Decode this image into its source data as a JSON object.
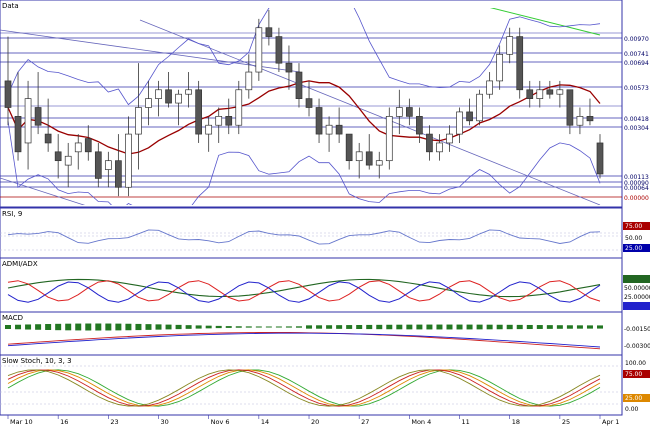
{
  "chart_data": {
    "type": "candlestick",
    "panes": {
      "price": {
        "title": "Data",
        "ylim": [
          0.0081,
          0.0103
        ],
        "ticks": [
          "0.00970",
          "0.00741",
          "0.00694",
          "0.00573",
          "0.00418",
          "0.00304",
          "0.00113",
          "0.00090",
          "0.00064",
          "0.00000"
        ],
        "candles": [
          {
            "o": 0.0095,
            "h": 0.01,
            "l": 0.009,
            "c": 0.0092,
            "bull": false
          },
          {
            "o": 0.0091,
            "h": 0.0096,
            "l": 0.0086,
            "c": 0.0087,
            "bull": false
          },
          {
            "o": 0.0088,
            "h": 0.0095,
            "l": 0.0085,
            "c": 0.0093,
            "bull": true
          },
          {
            "o": 0.0092,
            "h": 0.0096,
            "l": 0.0089,
            "c": 0.009,
            "bull": false
          },
          {
            "o": 0.0089,
            "h": 0.0093,
            "l": 0.0087,
            "c": 0.0088,
            "bull": false
          },
          {
            "o": 0.0087,
            "h": 0.0089,
            "l": 0.0084,
            "c": 0.0086,
            "bull": false
          },
          {
            "o": 0.00855,
            "h": 0.0088,
            "l": 0.0083,
            "c": 0.00865,
            "bull": true
          },
          {
            "o": 0.0087,
            "h": 0.0089,
            "l": 0.0085,
            "c": 0.0088,
            "bull": true
          },
          {
            "o": 0.00885,
            "h": 0.009,
            "l": 0.0086,
            "c": 0.0087,
            "bull": false
          },
          {
            "o": 0.0087,
            "h": 0.0088,
            "l": 0.0083,
            "c": 0.0084,
            "bull": false
          },
          {
            "o": 0.0085,
            "h": 0.0087,
            "l": 0.0083,
            "c": 0.0086,
            "bull": true
          },
          {
            "o": 0.0086,
            "h": 0.0089,
            "l": 0.0082,
            "c": 0.0083,
            "bull": false
          },
          {
            "o": 0.0083,
            "h": 0.0091,
            "l": 0.0082,
            "c": 0.0089,
            "bull": true
          },
          {
            "o": 0.0089,
            "h": 0.0097,
            "l": 0.0085,
            "c": 0.0092,
            "bull": true
          },
          {
            "o": 0.0092,
            "h": 0.0095,
            "l": 0.009,
            "c": 0.0093,
            "bull": true
          },
          {
            "o": 0.0093,
            "h": 0.0095,
            "l": 0.0091,
            "c": 0.0094,
            "bull": true
          },
          {
            "o": 0.0094,
            "h": 0.0096,
            "l": 0.0092,
            "c": 0.00925,
            "bull": false
          },
          {
            "o": 0.00925,
            "h": 0.0094,
            "l": 0.009,
            "c": 0.00935,
            "bull": true
          },
          {
            "o": 0.00935,
            "h": 0.0096,
            "l": 0.0092,
            "c": 0.0094,
            "bull": true
          },
          {
            "o": 0.0094,
            "h": 0.0095,
            "l": 0.0088,
            "c": 0.0089,
            "bull": false
          },
          {
            "o": 0.0089,
            "h": 0.0091,
            "l": 0.0087,
            "c": 0.009,
            "bull": true
          },
          {
            "o": 0.009,
            "h": 0.0092,
            "l": 0.0088,
            "c": 0.0091,
            "bull": true
          },
          {
            "o": 0.0091,
            "h": 0.0093,
            "l": 0.0089,
            "c": 0.009,
            "bull": false
          },
          {
            "o": 0.009,
            "h": 0.0095,
            "l": 0.0089,
            "c": 0.0094,
            "bull": true
          },
          {
            "o": 0.0094,
            "h": 0.0098,
            "l": 0.0093,
            "c": 0.0096,
            "bull": true
          },
          {
            "o": 0.0096,
            "h": 0.0102,
            "l": 0.0095,
            "c": 0.0101,
            "bull": true
          },
          {
            "o": 0.0101,
            "h": 0.0103,
            "l": 0.0099,
            "c": 0.01,
            "bull": false
          },
          {
            "o": 0.01,
            "h": 0.0101,
            "l": 0.0096,
            "c": 0.0097,
            "bull": false
          },
          {
            "o": 0.0097,
            "h": 0.0099,
            "l": 0.0094,
            "c": 0.0096,
            "bull": false
          },
          {
            "o": 0.0096,
            "h": 0.0097,
            "l": 0.0092,
            "c": 0.0093,
            "bull": false
          },
          {
            "o": 0.0093,
            "h": 0.0095,
            "l": 0.0091,
            "c": 0.0092,
            "bull": false
          },
          {
            "o": 0.0092,
            "h": 0.0093,
            "l": 0.0088,
            "c": 0.0089,
            "bull": false
          },
          {
            "o": 0.0089,
            "h": 0.0091,
            "l": 0.0087,
            "c": 0.009,
            "bull": true
          },
          {
            "o": 0.009,
            "h": 0.0092,
            "l": 0.0088,
            "c": 0.0089,
            "bull": false
          },
          {
            "o": 0.0089,
            "h": 0.0089,
            "l": 0.0085,
            "c": 0.0086,
            "bull": false
          },
          {
            "o": 0.0086,
            "h": 0.0088,
            "l": 0.0084,
            "c": 0.0087,
            "bull": true
          },
          {
            "o": 0.0087,
            "h": 0.0089,
            "l": 0.0085,
            "c": 0.00855,
            "bull": false
          },
          {
            "o": 0.00855,
            "h": 0.0087,
            "l": 0.0084,
            "c": 0.0086,
            "bull": true
          },
          {
            "o": 0.0086,
            "h": 0.0092,
            "l": 0.0085,
            "c": 0.0091,
            "bull": true
          },
          {
            "o": 0.0091,
            "h": 0.0094,
            "l": 0.0089,
            "c": 0.0092,
            "bull": true
          },
          {
            "o": 0.0092,
            "h": 0.0093,
            "l": 0.009,
            "c": 0.0091,
            "bull": false
          },
          {
            "o": 0.0091,
            "h": 0.0092,
            "l": 0.0088,
            "c": 0.0089,
            "bull": false
          },
          {
            "o": 0.0089,
            "h": 0.009,
            "l": 0.0086,
            "c": 0.0087,
            "bull": false
          },
          {
            "o": 0.0087,
            "h": 0.0089,
            "l": 0.0086,
            "c": 0.0088,
            "bull": true
          },
          {
            "o": 0.0088,
            "h": 0.009,
            "l": 0.0087,
            "c": 0.0089,
            "bull": true
          },
          {
            "o": 0.0089,
            "h": 0.0092,
            "l": 0.0088,
            "c": 0.00915,
            "bull": true
          },
          {
            "o": 0.00915,
            "h": 0.0093,
            "l": 0.009,
            "c": 0.00905,
            "bull": false
          },
          {
            "o": 0.00905,
            "h": 0.0094,
            "l": 0.009,
            "c": 0.00935,
            "bull": true
          },
          {
            "o": 0.00935,
            "h": 0.0096,
            "l": 0.0093,
            "c": 0.0095,
            "bull": true
          },
          {
            "o": 0.0095,
            "h": 0.0099,
            "l": 0.0094,
            "c": 0.0098,
            "bull": true
          },
          {
            "o": 0.0098,
            "h": 0.0101,
            "l": 0.0097,
            "c": 0.01,
            "bull": true
          },
          {
            "o": 0.01,
            "h": 0.0101,
            "l": 0.0093,
            "c": 0.0094,
            "bull": false
          },
          {
            "o": 0.0094,
            "h": 0.0095,
            "l": 0.0092,
            "c": 0.0093,
            "bull": false
          },
          {
            "o": 0.0093,
            "h": 0.0095,
            "l": 0.0092,
            "c": 0.0094,
            "bull": true
          },
          {
            "o": 0.0094,
            "h": 0.0095,
            "l": 0.0093,
            "c": 0.00935,
            "bull": false
          },
          {
            "o": 0.00935,
            "h": 0.0095,
            "l": 0.0092,
            "c": 0.0094,
            "bull": true
          },
          {
            "o": 0.0094,
            "h": 0.0094,
            "l": 0.0089,
            "c": 0.009,
            "bull": false
          },
          {
            "o": 0.009,
            "h": 0.0092,
            "l": 0.0089,
            "c": 0.0091,
            "bull": true
          },
          {
            "o": 0.0091,
            "h": 0.0093,
            "l": 0.009,
            "c": 0.00905,
            "bull": false
          },
          {
            "o": 0.0088,
            "h": 0.0089,
            "l": 0.0084,
            "c": 0.00845,
            "bull": false
          }
        ]
      },
      "rsi": {
        "title": "RSI, 9",
        "ylim": [
          0,
          100
        ],
        "ticks": [
          "75.00",
          "50.00",
          "25.00"
        ]
      },
      "adx": {
        "title": "ADMI/ADX",
        "ylim": [
          0,
          70
        ],
        "ticks": [
          "50.00000",
          "25.00000"
        ]
      },
      "macd": {
        "title": "MACD",
        "ylim": [
          -0.003,
          0.0015
        ],
        "ticks": [
          "-0.00150",
          "-0.00300"
        ]
      },
      "stoch": {
        "title": "Slow Stoch, 10, 3, 3",
        "ylim": [
          0,
          100
        ],
        "ticks": [
          "100.00",
          "75.00",
          "25.00",
          "0.00"
        ]
      }
    },
    "x_labels": [
      "Mar 10",
      "16",
      "23",
      "30",
      "Nov 6",
      "14",
      "20",
      "27",
      "Mon 4",
      "11",
      "18",
      "25",
      "Apr 1"
    ]
  }
}
